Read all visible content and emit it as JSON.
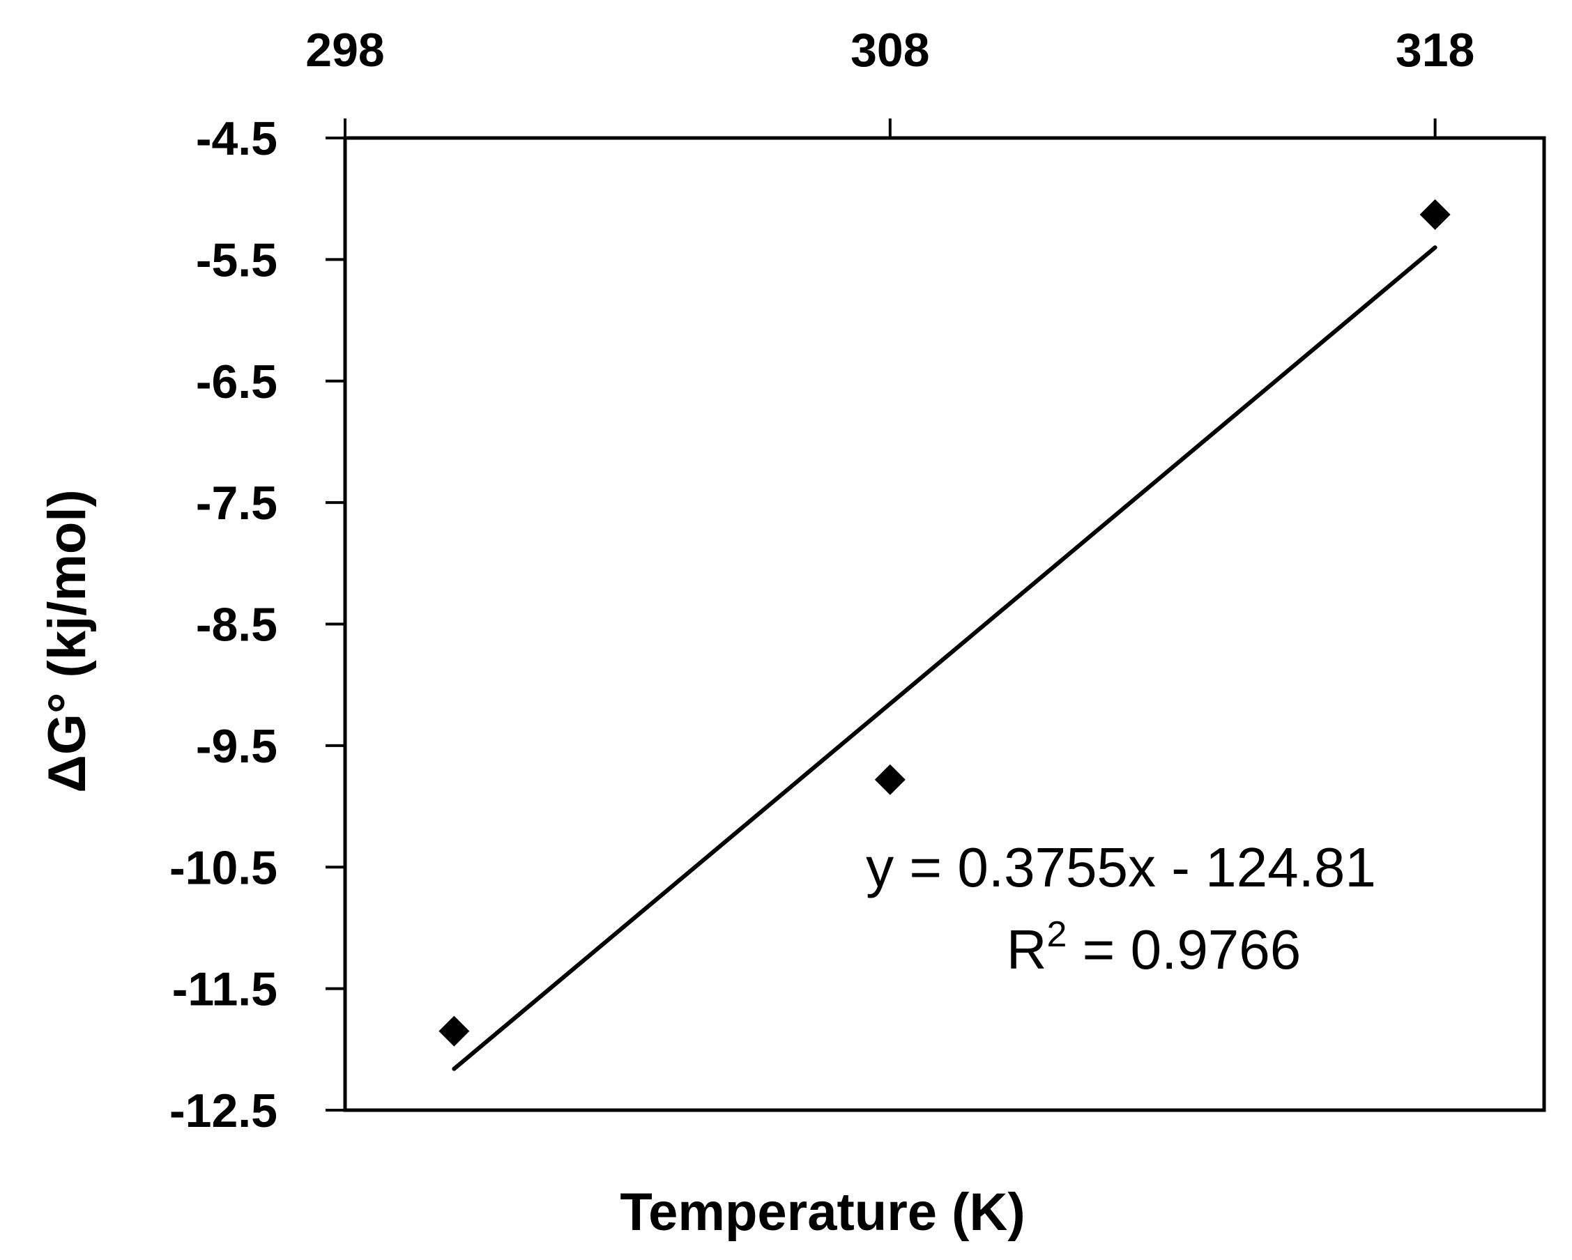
{
  "chart_data": {
    "type": "scatter",
    "title": "",
    "xlabel": "Temperature (K)",
    "ylabel": "ΔG° (kj/mol)",
    "x_axis_position": "top",
    "xlim": [
      298,
      320
    ],
    "ylim": [
      -12.5,
      -4.5
    ],
    "x_ticks": [
      298,
      308,
      318
    ],
    "x_tick_labels": [
      "298",
      "308",
      "318"
    ],
    "y_ticks": [
      -4.5,
      -5.5,
      -6.5,
      -7.5,
      -8.5,
      -9.5,
      -10.5,
      -11.5,
      -12.5
    ],
    "y_tick_labels": [
      "-4.5",
      "-5.5",
      "-6.5",
      "-7.5",
      "-8.5",
      "-9.5",
      "-10.5",
      "-11.5",
      "-12.5"
    ],
    "grid": false,
    "legend": "none",
    "series": [
      {
        "marker": "diamond",
        "color": "#000000",
        "points": [
          {
            "x": 300,
            "y": -11.85
          },
          {
            "x": 308,
            "y": -9.78
          },
          {
            "x": 318,
            "y": -5.13
          }
        ]
      }
    ],
    "trendline": {
      "type": "linear",
      "slope": 0.3755,
      "intercept": -124.81,
      "x_range": [
        300,
        318
      ],
      "color": "#000000"
    },
    "annotations": {
      "equation": "y = 0.3755x - 124.81",
      "r2_prefix": "R",
      "r2_superscript": "2",
      "r2_suffix": " = 0.9766"
    }
  }
}
